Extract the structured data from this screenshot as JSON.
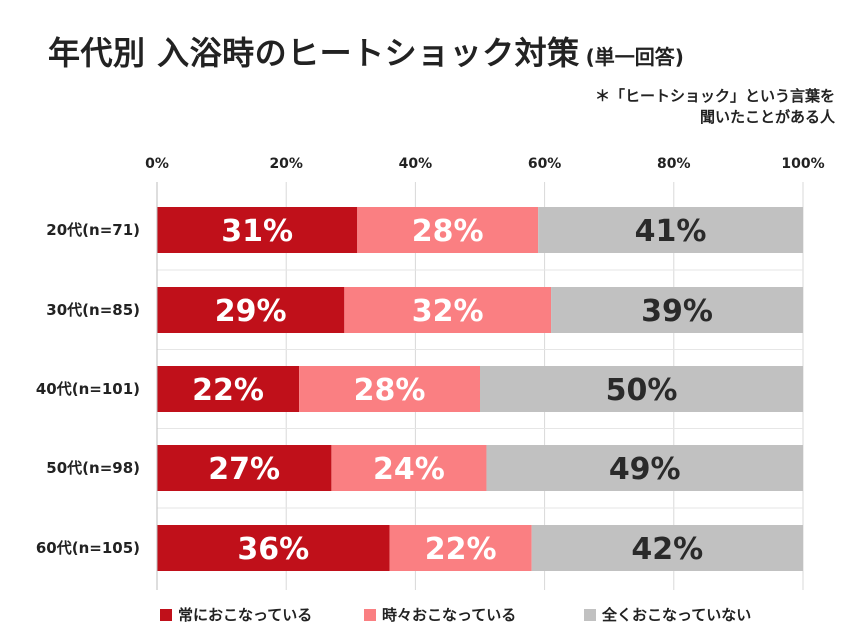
{
  "title": {
    "main": "年代別 入浴時のヒートショック対策",
    "sub": "(単一回答)"
  },
  "note": {
    "line1": "＊「ヒートショック」という言葉を",
    "line2": "聞いたことがある人"
  },
  "chart_data": {
    "type": "bar",
    "orientation": "horizontal",
    "stacked": true,
    "percent": true,
    "categories": [
      "20代(n=71)",
      "30代(n=85)",
      "40代(n=101)",
      "50代(n=98)",
      "60代(n=105)"
    ],
    "x_ticks": [
      "0%",
      "20%",
      "40%",
      "60%",
      "80%",
      "100%"
    ],
    "xlim": [
      0,
      100
    ],
    "grid": "vertical",
    "legend_position": "bottom",
    "series": [
      {
        "name": "常におこなっている",
        "color": "#c0101a",
        "values": [
          31,
          29,
          22,
          27,
          36
        ],
        "labels": [
          "31%",
          "29%",
          "22%",
          "27%",
          "36%"
        ]
      },
      {
        "name": "時々おこなっている",
        "color": "#fa7f82",
        "values": [
          28,
          32,
          28,
          24,
          22
        ],
        "labels": [
          "28%",
          "32%",
          "28%",
          "24%",
          "22%"
        ]
      },
      {
        "name": "全くおこなっていない",
        "color": "#c1c1c1",
        "values": [
          41,
          39,
          50,
          49,
          42
        ],
        "labels": [
          "41%",
          "39%",
          "50%",
          "49%",
          "42%"
        ]
      }
    ]
  }
}
